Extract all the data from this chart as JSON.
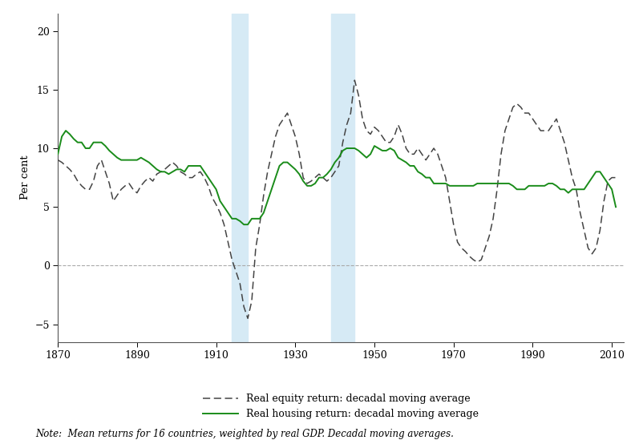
{
  "equity_y": [
    9.0,
    8.8,
    8.5,
    8.2,
    7.8,
    7.2,
    6.8,
    6.5,
    6.5,
    7.2,
    8.5,
    9.0,
    8.0,
    7.0,
    5.5,
    6.0,
    6.5,
    6.8,
    7.0,
    6.5,
    6.2,
    6.8,
    7.2,
    7.5,
    7.2,
    7.8,
    8.0,
    8.2,
    8.5,
    8.8,
    8.5,
    8.0,
    7.8,
    7.5,
    7.5,
    7.8,
    8.0,
    7.5,
    6.8,
    5.8,
    5.2,
    4.5,
    3.5,
    2.0,
    0.5,
    -0.5,
    -1.5,
    -3.5,
    -4.5,
    -3.0,
    1.5,
    3.5,
    6.0,
    8.0,
    9.5,
    11.0,
    12.0,
    12.5,
    13.0,
    12.0,
    11.0,
    9.5,
    7.5,
    7.0,
    7.2,
    7.5,
    7.8,
    7.5,
    7.2,
    7.5,
    8.0,
    8.5,
    10.5,
    12.0,
    13.0,
    15.8,
    14.5,
    12.5,
    11.5,
    11.2,
    11.8,
    11.5,
    11.0,
    10.5,
    10.5,
    11.0,
    12.0,
    11.2,
    10.0,
    9.5,
    9.5,
    10.0,
    9.5,
    9.0,
    9.5,
    10.0,
    9.5,
    8.5,
    7.5,
    5.5,
    3.5,
    2.0,
    1.5,
    1.2,
    0.8,
    0.5,
    0.3,
    0.5,
    1.5,
    2.5,
    4.0,
    6.5,
    9.5,
    11.5,
    12.5,
    13.5,
    13.8,
    13.5,
    13.0,
    13.0,
    12.5,
    12.0,
    11.5,
    11.5,
    11.5,
    12.0,
    12.5,
    11.5,
    10.5,
    9.0,
    7.5,
    6.5,
    4.5,
    3.0,
    1.5,
    1.0,
    1.5,
    3.0,
    5.5,
    7.2,
    7.5,
    7.5
  ],
  "housing_y": [
    9.5,
    11.0,
    11.5,
    11.2,
    10.8,
    10.5,
    10.5,
    10.0,
    10.0,
    10.5,
    10.5,
    10.5,
    10.2,
    9.8,
    9.5,
    9.2,
    9.0,
    9.0,
    9.0,
    9.0,
    9.0,
    9.2,
    9.0,
    8.8,
    8.5,
    8.2,
    8.0,
    8.0,
    7.8,
    8.0,
    8.2,
    8.2,
    8.0,
    8.5,
    8.5,
    8.5,
    8.5,
    8.0,
    7.5,
    7.0,
    6.5,
    5.5,
    5.0,
    4.5,
    4.0,
    4.0,
    3.8,
    3.5,
    3.5,
    4.0,
    4.0,
    4.0,
    4.5,
    5.5,
    6.5,
    7.5,
    8.5,
    8.8,
    8.8,
    8.5,
    8.2,
    7.8,
    7.2,
    6.8,
    6.8,
    7.0,
    7.5,
    7.5,
    7.8,
    8.2,
    8.8,
    9.2,
    9.8,
    10.0,
    10.0,
    10.0,
    9.8,
    9.5,
    9.2,
    9.5,
    10.2,
    10.0,
    9.8,
    9.8,
    10.0,
    9.8,
    9.2,
    9.0,
    8.8,
    8.5,
    8.5,
    8.0,
    7.8,
    7.5,
    7.5,
    7.0,
    7.0,
    7.0,
    7.0,
    6.8,
    6.8,
    6.8,
    6.8,
    6.8,
    6.8,
    6.8,
    7.0,
    7.0,
    7.0,
    7.0,
    7.0,
    7.0,
    7.0,
    7.0,
    7.0,
    6.8,
    6.5,
    6.5,
    6.5,
    6.8,
    6.8,
    6.8,
    6.8,
    6.8,
    7.0,
    7.0,
    6.8,
    6.5,
    6.5,
    6.2,
    6.5,
    6.5,
    6.5,
    6.5,
    7.0,
    7.5,
    8.0,
    8.0,
    7.5,
    7.0,
    6.5,
    5.0
  ],
  "shade1_x1": 1914,
  "shade1_x2": 1918,
  "shade2_x1": 1939,
  "shade2_x2": 1945,
  "shade_color": "#d6eaf5",
  "equity_color": "#444444",
  "housing_color": "#1a8c1a",
  "xlim": [
    1870,
    2013
  ],
  "ylim": [
    -6.5,
    21.5
  ],
  "yticks": [
    -5,
    0,
    5,
    10,
    15,
    20
  ],
  "xticks": [
    1870,
    1890,
    1910,
    1930,
    1950,
    1970,
    1990,
    2010
  ],
  "ylabel": "Per cent",
  "legend_equity": "Real equity return: decadal moving average",
  "legend_housing": "Real housing return: decadal moving average",
  "note": "Note:  Mean returns for 16 countries, weighted by real GDP. Decadal moving averages."
}
